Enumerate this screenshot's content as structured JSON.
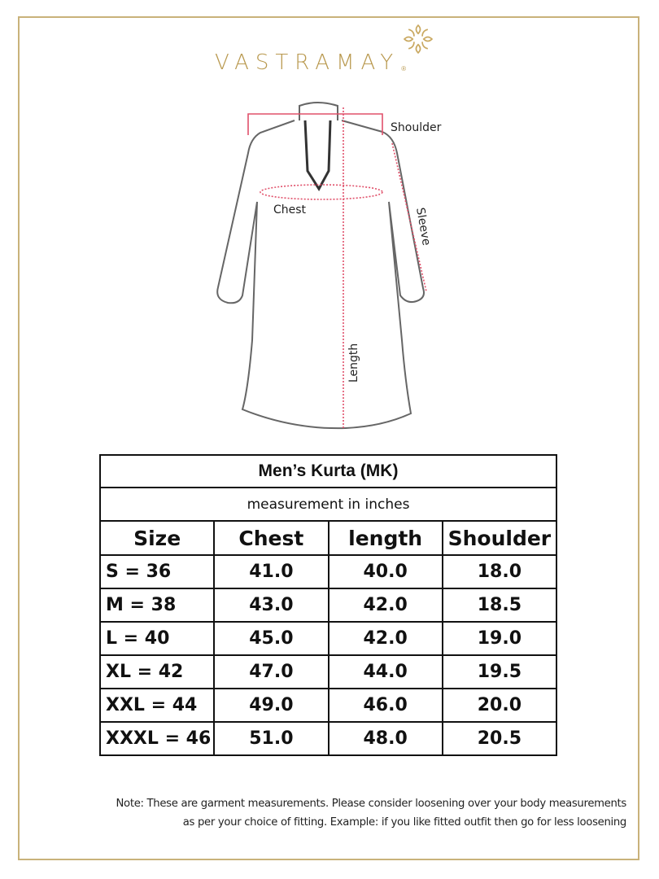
{
  "brand": {
    "name": "VASTRAMAY",
    "registered": "®",
    "color": "#b9994f"
  },
  "diagram": {
    "labels": {
      "shoulder": "Shoulder",
      "chest": "Chest",
      "sleeve": "Sleeve",
      "length": "Length"
    },
    "measure_color": "#e0506a"
  },
  "table": {
    "title": "Men’s Kurta (MK)",
    "subtitle": "measurement in inches",
    "headers": [
      "Size",
      "Chest",
      "length",
      "Shoulder"
    ],
    "rows": [
      [
        "S = 36",
        "41.0",
        "40.0",
        "18.0"
      ],
      [
        "M = 38",
        "43.0",
        "42.0",
        "18.5"
      ],
      [
        "L = 40",
        "45.0",
        "42.0",
        "19.0"
      ],
      [
        "XL = 42",
        "47.0",
        "44.0",
        "19.5"
      ],
      [
        "XXL = 44",
        "49.0",
        "46.0",
        "20.0"
      ],
      [
        "XXXL = 46",
        "51.0",
        "48.0",
        "20.5"
      ]
    ]
  },
  "note": {
    "line1": "Note: These are garment measurements. Please consider loosening over your body measurements",
    "line2": "as per your choice of fitting. Example: if you like fitted outfit then go for less loosening"
  }
}
